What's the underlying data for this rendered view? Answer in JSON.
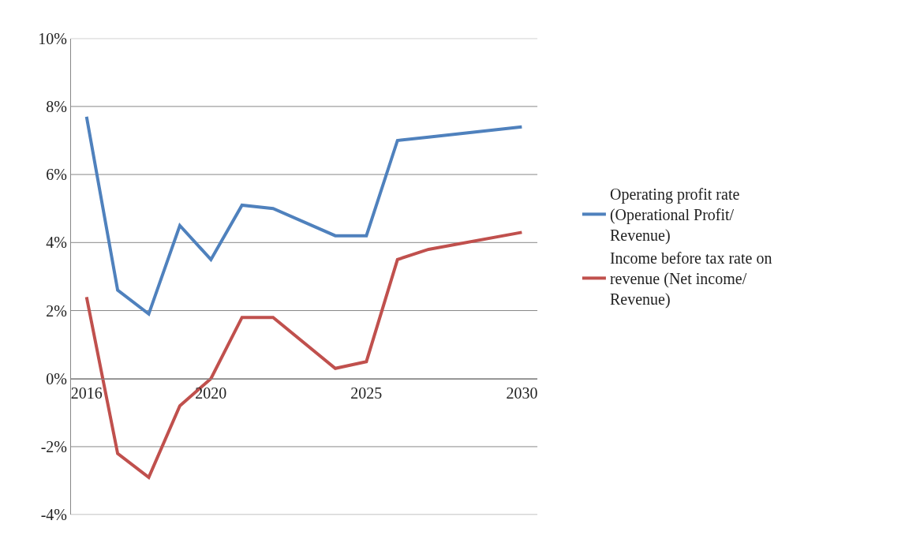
{
  "chart_data": {
    "type": "line",
    "x": [
      2016,
      2017,
      2018,
      2019,
      2020,
      2021,
      2022,
      2024,
      2025,
      2026,
      2027,
      2030
    ],
    "series": [
      {
        "name": "Operating profit rate (Operational Profit/ Revenue)",
        "color": "#4f81bd",
        "values": [
          7.7,
          2.6,
          1.9,
          4.5,
          3.5,
          5.1,
          5.0,
          4.2,
          4.2,
          7.0,
          7.1,
          7.4
        ]
      },
      {
        "name": "Income before tax rate on revenue (Net income/ Revenue)",
        "color": "#c0504d",
        "values": [
          2.4,
          -2.2,
          -2.9,
          -0.8,
          0.0,
          1.8,
          1.8,
          0.3,
          0.5,
          3.5,
          3.8,
          4.3
        ]
      }
    ],
    "xlim": [
      2015.5,
      2030.5
    ],
    "xticks": [
      2016,
      2020,
      2025,
      2030
    ],
    "ylim": [
      -4,
      10
    ],
    "yticks": [
      {
        "value": -4,
        "label": "-4%"
      },
      {
        "value": -2,
        "label": "-2%"
      },
      {
        "value": 0,
        "label": "0%"
      },
      {
        "value": 2,
        "label": "2%"
      },
      {
        "value": 4,
        "label": "4%"
      },
      {
        "value": 6,
        "label": "6%"
      },
      {
        "value": 8,
        "label": "8%"
      },
      {
        "value": 10,
        "label": "10%"
      }
    ],
    "grid": "y",
    "legend": "right",
    "marker": "none",
    "line_style": "solid"
  }
}
